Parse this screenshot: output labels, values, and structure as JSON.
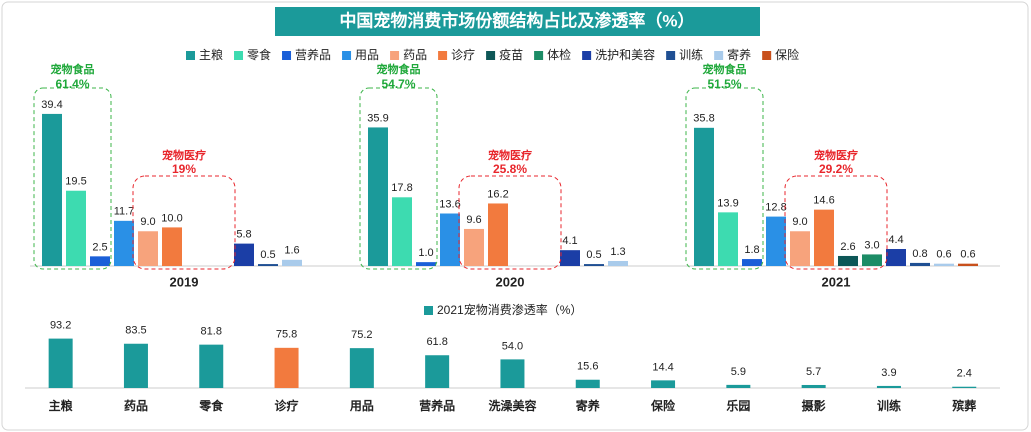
{
  "chart_data": [
    {
      "type": "grouped-bar",
      "title": "中国宠物消费市场份额结构占比及渗透率（%）",
      "categories": [
        "2019",
        "2020",
        "2021"
      ],
      "series": [
        {
          "name": "主粮",
          "color": "#1b9a9a",
          "values": [
            39.4,
            35.9,
            35.8
          ],
          "value_labels": [
            "39.4",
            "35.9",
            "35.8"
          ]
        },
        {
          "name": "零食",
          "color": "#3ddbb0",
          "values": [
            19.5,
            17.8,
            13.9
          ],
          "value_labels": [
            "19.5",
            "17.8",
            "13.9"
          ]
        },
        {
          "name": "营养品",
          "color": "#1a5fd8",
          "values": [
            2.5,
            1.0,
            1.8
          ],
          "value_labels": [
            "2.5",
            "1.0",
            "1.8"
          ]
        },
        {
          "name": "用品",
          "color": "#2a90e6",
          "values": [
            11.7,
            13.6,
            12.8
          ],
          "value_labels": [
            "11.7",
            "13.6",
            "12.8"
          ]
        },
        {
          "name": "药品",
          "color": "#f7a37c",
          "values": [
            9.0,
            9.6,
            9.0
          ],
          "value_labels": [
            "9.0",
            "9.6",
            "9.0"
          ]
        },
        {
          "name": "诊疗",
          "color": "#f27a3e",
          "values": [
            10.0,
            16.2,
            14.6
          ],
          "value_labels": [
            "10.0",
            "16.2",
            "14.6"
          ]
        },
        {
          "name": "疫苗",
          "color": "#0d5757",
          "values": [
            null,
            null,
            2.6
          ],
          "value_labels": [
            null,
            null,
            "2.6"
          ]
        },
        {
          "name": "体检",
          "color": "#1c8c66",
          "values": [
            null,
            null,
            3.0
          ],
          "value_labels": [
            null,
            null,
            "3.0"
          ]
        },
        {
          "name": "洗护和美容",
          "color": "#1b3ea6",
          "values": [
            5.8,
            4.1,
            4.4
          ],
          "value_labels": [
            "5.8",
            "4.1",
            "4.4"
          ]
        },
        {
          "name": "训练",
          "color": "#1f4f93",
          "values": [
            0.5,
            0.5,
            0.8
          ],
          "value_labels": [
            "0.5",
            "0.5",
            "0.8"
          ]
        },
        {
          "name": "寄养",
          "color": "#a9cbeb",
          "values": [
            1.6,
            1.3,
            0.6
          ],
          "value_labels": [
            "1.6",
            "1.3",
            "0.6"
          ]
        },
        {
          "name": "保险",
          "color": "#c8501c",
          "values": [
            null,
            null,
            0.6
          ],
          "value_labels": [
            null,
            null,
            "0.6"
          ]
        }
      ],
      "annotations": [
        {
          "food_label": "宠物食品",
          "food_value": "61.4%",
          "medical_label": "宠物医疗",
          "medical_value": "19%"
        },
        {
          "food_label": "宠物食品",
          "food_value": "54.7%",
          "medical_label": "宠物医疗",
          "medical_value": "25.8%"
        },
        {
          "food_label": "宠物食品",
          "food_value": "51.5%",
          "medical_label": "宠物医疗",
          "medical_value": "29.2%"
        }
      ]
    },
    {
      "type": "bar",
      "legend": "2021宠物消费渗透率（%）",
      "color": "#1b9a9a",
      "categories": [
        "主粮",
        "药品",
        "零食",
        "诊疗",
        "用品",
        "营养品",
        "洗澡美容",
        "寄养",
        "保险",
        "乐园",
        "摄影",
        "训练",
        "殡葬"
      ],
      "values": [
        93.2,
        83.5,
        81.8,
        75.8,
        75.2,
        61.8,
        54.0,
        15.6,
        14.4,
        5.9,
        5.7,
        3.9,
        2.4
      ],
      "value_labels": [
        "93.2",
        "83.5",
        "81.8",
        "75.8",
        "75.2",
        "61.8",
        "54.0",
        "15.6",
        "14.4",
        "5.9",
        "5.7",
        "3.9",
        "2.4"
      ],
      "colors": [
        "#1b9a9a",
        "#1b9a9a",
        "#1b9a9a",
        "#f27a3e",
        "#1b9a9a",
        "#1b9a9a",
        "#1b9a9a",
        "#1b9a9a",
        "#1b9a9a",
        "#1b9a9a",
        "#1b9a9a",
        "#1b9a9a",
        "#1b9a9a"
      ]
    }
  ]
}
